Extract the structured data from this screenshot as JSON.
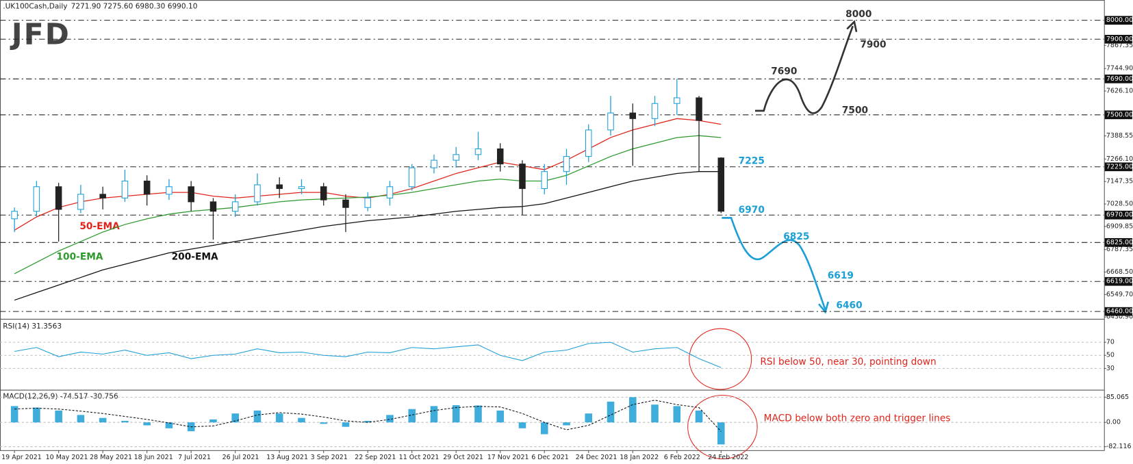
{
  "logo": "JFD",
  "chart_data": [
    {
      "type": "candlestick",
      "title": ".UK100Cash,Daily",
      "subtitle": "7271.90 7275.60 6980.30 6990.10",
      "categories": [
        "19 Apr 2021",
        null,
        "10 May 2021",
        null,
        "28 May 2021",
        null,
        "18 Jun 2021",
        null,
        "7 Jul 2021",
        null,
        "26 Jul 2021",
        null,
        "13 Aug 2021",
        null,
        "3 Sep 2021",
        null,
        "22 Sep 2021",
        null,
        "11 Oct 2021",
        null,
        "29 Oct 2021",
        null,
        "17 Nov 2021",
        null,
        "6 Dec 2021",
        null,
        "24 Dec 2021",
        null,
        "18 Jan 2022",
        null,
        "6 Feb 2022",
        null,
        "24 Feb 2022"
      ],
      "open": [
        6950,
        6990,
        7120,
        7000,
        7080,
        7060,
        7150,
        7080,
        7120,
        7040,
        6990,
        7040,
        7130,
        7110,
        7120,
        7050,
        7010,
        7060,
        7120,
        7220,
        7260,
        7290,
        7320,
        7240,
        7110,
        7200,
        7280,
        7420,
        7510,
        7480,
        7560,
        7590,
        7271.9
      ],
      "high": [
        7010,
        7150,
        7140,
        7130,
        7120,
        7210,
        7180,
        7160,
        7150,
        7060,
        7080,
        7190,
        7170,
        7160,
        7140,
        7080,
        7090,
        7150,
        7240,
        7290,
        7330,
        7410,
        7350,
        7260,
        7240,
        7320,
        7450,
        7600,
        7560,
        7600,
        7690,
        7600,
        7275.6
      ],
      "low": [
        6880,
        6960,
        6830,
        6980,
        7000,
        7040,
        7020,
        7050,
        6990,
        6840,
        6960,
        7020,
        7060,
        7080,
        7020,
        6880,
        6990,
        7020,
        7100,
        7190,
        7220,
        7260,
        7200,
        6970,
        7080,
        7130,
        7250,
        7390,
        7230,
        7440,
        7500,
        7200,
        6980.3
      ],
      "close": [
        6990,
        7120,
        7000,
        7080,
        7060,
        7150,
        7080,
        7120,
        7040,
        6990,
        7040,
        7130,
        7110,
        7120,
        7050,
        7010,
        7060,
        7120,
        7220,
        7260,
        7290,
        7320,
        7240,
        7110,
        7200,
        7280,
        7420,
        7510,
        7480,
        7560,
        7590,
        7470,
        6990.1
      ],
      "up_color": "#1c9fd6",
      "down_color": "#222222",
      "series": [
        {
          "name": "50-EMA",
          "color": "#e0241b",
          "values": [
            6890,
            6960,
            7010,
            7040,
            7060,
            7070,
            7080,
            7090,
            7090,
            7070,
            7060,
            7070,
            7080,
            7090,
            7090,
            7070,
            7060,
            7080,
            7110,
            7150,
            7190,
            7220,
            7250,
            7230,
            7210,
            7260,
            7320,
            7380,
            7420,
            7450,
            7480,
            7470,
            7450
          ]
        },
        {
          "name": "100-EMA",
          "color": "#2e9a2e",
          "values": [
            6660,
            6720,
            6780,
            6830,
            6880,
            6920,
            6950,
            6975,
            6990,
            7000,
            7010,
            7025,
            7040,
            7050,
            7055,
            7060,
            7065,
            7075,
            7090,
            7110,
            7130,
            7150,
            7160,
            7150,
            7150,
            7180,
            7230,
            7280,
            7320,
            7350,
            7380,
            7390,
            7380
          ]
        },
        {
          "name": "200-EMA",
          "color": "#111111",
          "values": [
            6520,
            6560,
            6600,
            6640,
            6680,
            6710,
            6740,
            6770,
            6790,
            6810,
            6830,
            6850,
            6870,
            6890,
            6910,
            6925,
            6940,
            6950,
            6960,
            6975,
            6990,
            7000,
            7010,
            7015,
            7030,
            7060,
            7090,
            7120,
            7150,
            7170,
            7190,
            7200,
            7200
          ]
        }
      ],
      "ylim": [
        6423,
        8042
      ],
      "yticks": [
        7867.35,
        {
          "value": 7744.9,
          "label": "7744.90"
        },
        {
          "value": 7626.1,
          "label": "7626.10"
        },
        7388.55,
        {
          "value": 7266.1,
          "label": "7266.10"
        },
        7147.35,
        {
          "value": 7028.5,
          "label": "7028.50"
        },
        6909.85,
        6787.35,
        {
          "value": 6668.5,
          "label": "6668.50"
        },
        {
          "value": 6549.7,
          "label": "6549.70"
        },
        {
          "value": 6430.9,
          "label": "6430.90"
        }
      ],
      "levels": [
        {
          "value": 8000,
          "label": "8000.00"
        },
        {
          "value": 7900,
          "label": "7900.00"
        },
        {
          "value": 7690,
          "label": "7690.00"
        },
        {
          "value": 7500,
          "label": "7500.00"
        },
        {
          "value": 7225,
          "label": "7225.00"
        },
        {
          "value": 6970,
          "label": "6970.00"
        },
        {
          "value": 6825,
          "label": "6825.00"
        },
        {
          "value": 6619,
          "label": "6619.00"
        },
        {
          "value": 6460,
          "label": "6460.00"
        }
      ],
      "annotations": [
        {
          "value": 8000,
          "color": "#333333"
        },
        {
          "value": 7900,
          "color": "#333333"
        },
        {
          "value": 7690,
          "color": "#333333"
        },
        {
          "value": 7500,
          "color": "#333333"
        },
        {
          "value": 7225,
          "color": "#1c9fd6"
        },
        {
          "value": 6970,
          "color": "#1c9fd6"
        },
        {
          "value": 6825,
          "color": "#1c9fd6"
        },
        {
          "value": 6619,
          "color": "#1c9fd6"
        },
        {
          "value": 6460,
          "color": "#1c9fd6"
        }
      ]
    },
    {
      "type": "line",
      "title": "RSI(14) 31.3563",
      "color": "#1c9fd6",
      "values": [
        56,
        62,
        48,
        55,
        52,
        58,
        50,
        54,
        45,
        50,
        52,
        60,
        54,
        55,
        50,
        48,
        55,
        54,
        62,
        60,
        63,
        66,
        50,
        42,
        55,
        58,
        68,
        70,
        55,
        60,
        62,
        45,
        31.3563
      ],
      "ylim": [
        -2,
        103
      ],
      "yticks": [
        70,
        50,
        30
      ],
      "annotation": "RSI below 50, near 30, pointing down"
    },
    {
      "type": "macd",
      "title": "MACD(12,26,9) -74.517 -30.756",
      "color": "#1c9fd6",
      "values": [
        55,
        50,
        40,
        25,
        15,
        5,
        -10,
        -20,
        -30,
        10,
        30,
        40,
        30,
        15,
        -5,
        -15,
        5,
        25,
        45,
        55,
        58,
        57,
        40,
        -20,
        -40,
        -10,
        30,
        70,
        85,
        60,
        55,
        40,
        -74.517
      ],
      "signal": [
        45,
        48,
        45,
        38,
        30,
        20,
        10,
        -2,
        -15,
        -12,
        5,
        25,
        33,
        28,
        18,
        5,
        0,
        10,
        25,
        40,
        50,
        54,
        52,
        30,
        0,
        -25,
        -10,
        25,
        60,
        75,
        60,
        50,
        -30.756
      ],
      "ylim": [
        -94,
        104
      ],
      "yticks": [
        85.065,
        {
          "value": 0,
          "label": "0.00"
        },
        -82.116
      ],
      "annotation": "MACD below both zero and trigger lines"
    }
  ]
}
